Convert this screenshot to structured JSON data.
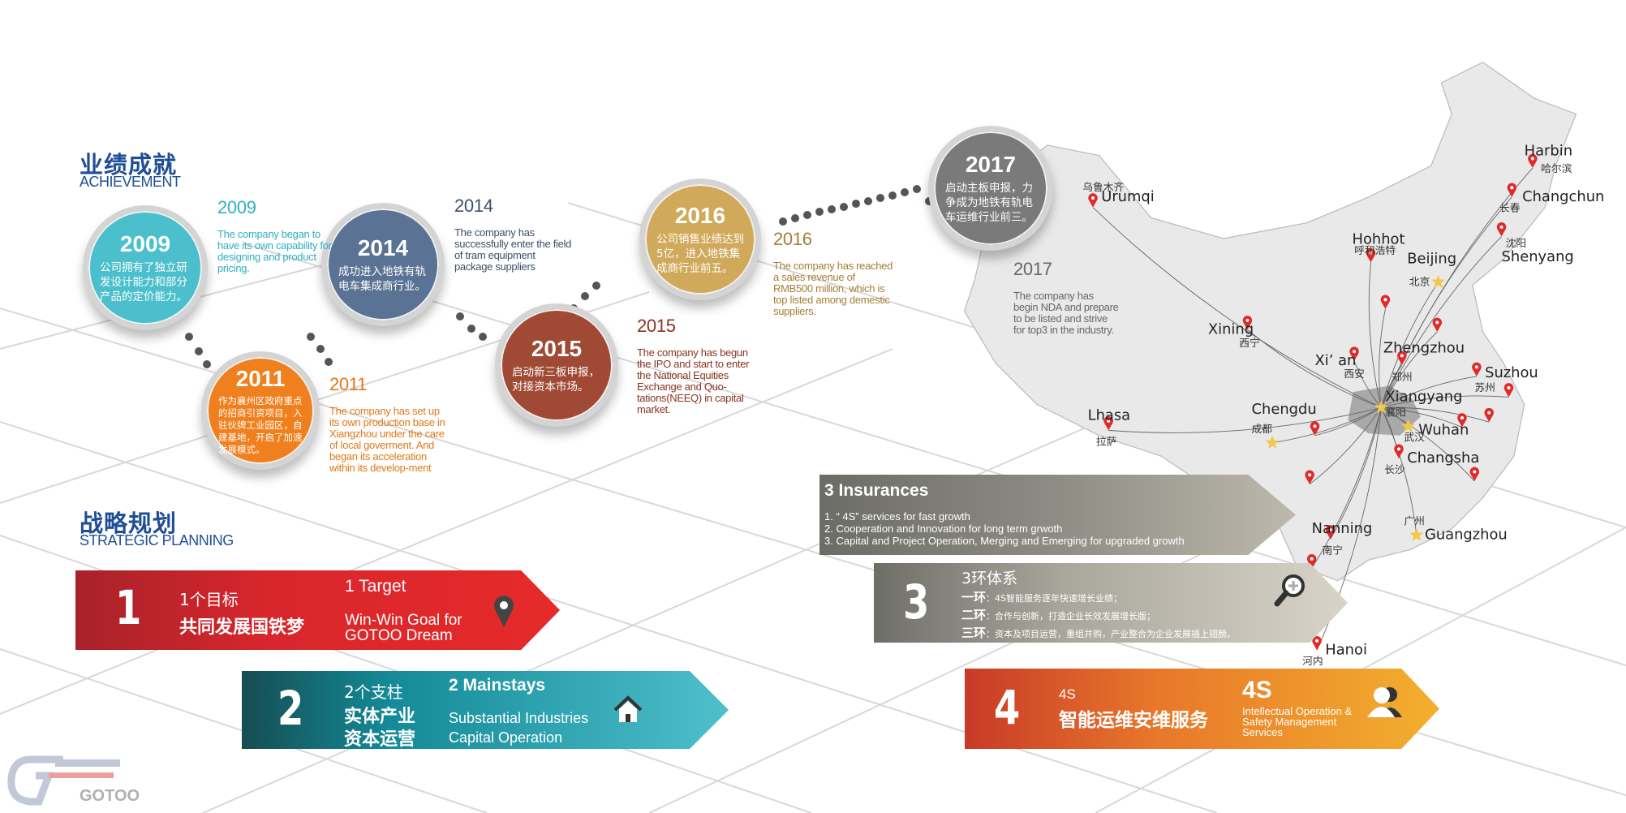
{
  "achievement": {
    "title_zh": "业绩成就",
    "title_en": "ACHIEVEMENT"
  },
  "milestones": [
    {
      "year": "2009",
      "zh": "公司拥有了独立研发设计能力和部分产品的定价能力。",
      "en": "The company began to have its own capability for designing and product pricing.",
      "color": "#4bbfcc"
    },
    {
      "year": "2011",
      "zh": "作为襄州区政府重点的招商引资项目，入驻伙牌工业园区，自建基地，开启了加速发展模式。",
      "en": "The company has set up its own production base in Xiangzhou under the care of local goverment. And began its acceleration within its develop-ment",
      "color": "#f07f1d"
    },
    {
      "year": "2014",
      "zh": "成功进入地铁有轨电车集成商行业。",
      "en": "The company has successfully enter the field of tram equipment package suppliers",
      "color": "#5a7394"
    },
    {
      "year": "2015",
      "zh": "启动新三板申报，对接资本市场。",
      "en": "The company has begun the IPO and start to enter the National Equities Exchange and Quo-tations(NEEQ) in capital market.",
      "color": "#a04a35"
    },
    {
      "year": "2016",
      "zh": "公司销售业绩达到5亿，进入地铁集成商行业前五。",
      "en": "The company has reached a sales revenue of RMB500 million, which is top listed among demestic suppliers.",
      "color": "#d0a95a"
    },
    {
      "year": "2017",
      "zh": "启动主板申报，力争成为地铁有轨电车运维行业前三。",
      "en": "The company has begin NDA and prepare to be listed and strive for top3 in the industry.",
      "color": "#7a7a7a"
    }
  ],
  "strategic": {
    "title_zh": "战略规划",
    "title_en": "STRATEGIC PLANNING"
  },
  "banners": {
    "b1": {
      "num": "1",
      "zh_small": "1个目标",
      "zh_big": "共同发展国铁梦",
      "en_title": "1 Target",
      "en_text": "Win-Win Goal for GOTOO Dream",
      "icon": "map-pin-icon"
    },
    "b2": {
      "num": "2",
      "zh_small": "2个支柱",
      "zh_big1": "实体产业",
      "zh_big2": "资本运营",
      "en_title": "2 Mainstays",
      "en_1": "Substantial Industries",
      "en_2": "Capital Operation",
      "icon": "home-icon"
    },
    "ins": {
      "title": "3 Insurances",
      "items": [
        "1. “ 4S” services for fast growth",
        "2. Cooperation and Innovation for long term grwoth",
        "3. Capital and Project Operation, Merging and Emerging for upgraded growth"
      ]
    },
    "b3": {
      "num": "3",
      "zh_title": "3环体系",
      "rows": [
        {
          "k": "一环",
          "v": "：4S智能服务逐年快速增长业绩；"
        },
        {
          "k": "二环",
          "v": "：合作与创新，打造企业长效发展增长版；"
        },
        {
          "k": "三环",
          "v": "：资本及项目运营，重组并购，产业整合为企业发展插上翅膀。"
        }
      ],
      "icon": "magnifier-plus-icon"
    },
    "b4": {
      "num": "4",
      "zh_small": "4S",
      "zh_big": "智能运维安维服务",
      "en_big": "4S",
      "en_text": "Intellectual Operation & Safety Management Services",
      "icon": "users-icon"
    }
  },
  "map": {
    "hub": {
      "en": "Xiangyang",
      "zh": "襄阳"
    },
    "cities": [
      {
        "en": "Urumqi",
        "zh": "乌鲁木齐"
      },
      {
        "en": "Harbin",
        "zh": "哈尔滨"
      },
      {
        "en": "Changchun",
        "zh": "长春"
      },
      {
        "en": "Shenyang",
        "zh": "沈阳"
      },
      {
        "en": "Hohhot",
        "zh": "呼和浩特"
      },
      {
        "en": "Beijing",
        "zh": "北京"
      },
      {
        "en": "Xining",
        "zh": "西宁"
      },
      {
        "en": "Xi’ an",
        "zh": "西安"
      },
      {
        "en": "Zhengzhou",
        "zh": "郑州"
      },
      {
        "en": "Suzhou",
        "zh": "苏州"
      },
      {
        "en": "Lhasa",
        "zh": "拉萨"
      },
      {
        "en": "Chengdu",
        "zh": "成都"
      },
      {
        "en": "Wuhan",
        "zh": "武汉"
      },
      {
        "en": "Changsha",
        "zh": "长沙"
      },
      {
        "en": "Nanning",
        "zh": "南宁"
      },
      {
        "en": "Guangzhou",
        "zh": "广州"
      },
      {
        "en": "Hanoi",
        "zh": "河内"
      }
    ]
  },
  "logo": {
    "text": "GOTOO"
  }
}
